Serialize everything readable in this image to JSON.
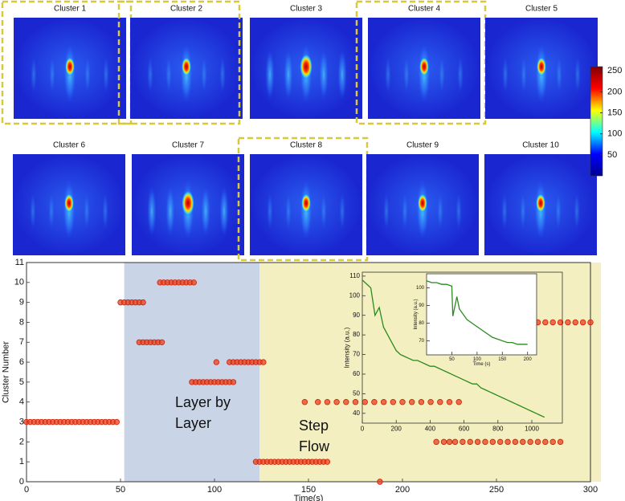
{
  "panels": [
    {
      "title": "Cluster 1",
      "highlighted": true
    },
    {
      "title": "Cluster 2",
      "highlighted": true
    },
    {
      "title": "Cluster 3",
      "highlighted": false
    },
    {
      "title": "Cluster 4",
      "highlighted": true
    },
    {
      "title": "Cluster 5",
      "highlighted": false
    },
    {
      "title": "Cluster 6",
      "highlighted": false
    },
    {
      "title": "Cluster 7",
      "highlighted": false
    },
    {
      "title": "Cluster 8",
      "highlighted": true
    },
    {
      "title": "Cluster 9",
      "highlighted": false
    },
    {
      "title": "Cluster 10",
      "highlighted": false
    }
  ],
  "chart_data": [
    {
      "type": "scatter",
      "xlabel": "Time(s)",
      "ylabel": "Cluster Number",
      "color": "#e8401c",
      "xlim": [
        0,
        300
      ],
      "xticks": [
        0,
        50,
        100,
        150,
        200,
        250,
        300
      ],
      "ylim": [
        0,
        11
      ],
      "yticks": [
        0,
        1,
        2,
        3,
        4,
        5,
        6,
        7,
        8,
        9,
        10,
        11
      ],
      "regions": [
        {
          "lines": [
            "Layer by",
            "Layer"
          ],
          "xlim": [
            52,
            124
          ],
          "color": "#c9d5e6"
        },
        {
          "lines": [
            "Step",
            "Flow"
          ],
          "xlim": [
            124,
            300
          ],
          "color": "#f4efc0"
        }
      ],
      "x": [
        0,
        2,
        4,
        6,
        8,
        10,
        12,
        14,
        16,
        18,
        20,
        22,
        24,
        26,
        28,
        30,
        32,
        34,
        36,
        38,
        40,
        42,
        44,
        46,
        48,
        50,
        52,
        54,
        56,
        58,
        60,
        62,
        60,
        62,
        64,
        66,
        68,
        70,
        72,
        71,
        73,
        75,
        77,
        79,
        81,
        83,
        85,
        87,
        89,
        88,
        90,
        92,
        94,
        96,
        98,
        100,
        102,
        104,
        106,
        108,
        110,
        101,
        108,
        110,
        112,
        114,
        116,
        118,
        120,
        122,
        124,
        126,
        122,
        124,
        126,
        128,
        130,
        132,
        134,
        136,
        138,
        140,
        142,
        144,
        146,
        148,
        150,
        152,
        154,
        156,
        158,
        160,
        148,
        155,
        160,
        165,
        170,
        175,
        180,
        185,
        190,
        195,
        200,
        205,
        210,
        215,
        220,
        225,
        230,
        188,
        218,
        222,
        225,
        228,
        232,
        236,
        240,
        244,
        248,
        252,
        256,
        260,
        264,
        268,
        272,
        276,
        280,
        284,
        268,
        272,
        276,
        280,
        284,
        288,
        292,
        296,
        300
      ],
      "values": [
        3,
        3,
        3,
        3,
        3,
        3,
        3,
        3,
        3,
        3,
        3,
        3,
        3,
        3,
        3,
        3,
        3,
        3,
        3,
        3,
        3,
        3,
        3,
        3,
        3,
        9,
        9,
        9,
        9,
        9,
        9,
        9,
        7,
        7,
        7,
        7,
        7,
        7,
        7,
        10,
        10,
        10,
        10,
        10,
        10,
        10,
        10,
        10,
        10,
        5,
        5,
        5,
        5,
        5,
        5,
        5,
        5,
        5,
        5,
        5,
        5,
        6,
        6,
        6,
        6,
        6,
        6,
        6,
        6,
        6,
        6,
        6,
        1,
        1,
        1,
        1,
        1,
        1,
        1,
        1,
        1,
        1,
        1,
        1,
        1,
        1,
        1,
        1,
        1,
        1,
        1,
        1,
        4,
        4,
        4,
        4,
        4,
        4,
        4,
        4,
        4,
        4,
        4,
        4,
        4,
        4,
        4,
        4,
        4,
        0,
        2,
        2,
        2,
        2,
        2,
        2,
        2,
        2,
        2,
        2,
        2,
        2,
        2,
        2,
        2,
        2,
        2,
        2,
        8,
        8,
        8,
        8,
        8,
        8,
        8,
        8,
        8
      ]
    },
    {
      "type": "line",
      "ylabel": "Intensity (a.u.)",
      "color": "#2a8a1e",
      "xlim": [
        0,
        1180
      ],
      "xticks": [
        0,
        200,
        400,
        600,
        800,
        1000
      ],
      "ylim": [
        35,
        112
      ],
      "yticks": [
        40,
        50,
        60,
        70,
        80,
        90,
        100,
        110
      ],
      "x": [
        0,
        25,
        50,
        75,
        100,
        125,
        150,
        175,
        200,
        225,
        250,
        275,
        300,
        325,
        350,
        375,
        400,
        425,
        450,
        475,
        500,
        525,
        550,
        575,
        600,
        625,
        650,
        675,
        700,
        725,
        750,
        775,
        800,
        825,
        850,
        875,
        900,
        925,
        950,
        975,
        1000,
        1025,
        1050,
        1075
      ],
      "values": [
        108,
        106,
        104,
        90,
        94,
        84,
        80,
        76,
        72,
        70,
        69,
        68,
        67,
        67,
        66,
        65,
        64,
        64,
        63,
        62,
        61,
        60,
        59,
        58,
        57,
        56,
        55,
        55,
        53,
        52,
        51,
        50,
        49,
        48,
        47,
        46,
        45,
        44,
        43,
        42,
        41,
        40,
        39,
        38
      ]
    },
    {
      "type": "line",
      "xlabel": "Time (s)",
      "ylabel": "Intensity (a.u.)",
      "color": "#2a8a1e",
      "xlim": [
        0,
        218
      ],
      "xticks": [
        50,
        100,
        150,
        200
      ],
      "ylim": [
        62,
        108
      ],
      "yticks": [
        70,
        80,
        90,
        100
      ],
      "x": [
        0,
        10,
        20,
        30,
        40,
        50,
        52,
        60,
        65,
        70,
        80,
        90,
        100,
        110,
        120,
        130,
        140,
        150,
        160,
        170,
        180,
        190,
        200
      ],
      "values": [
        104,
        103,
        103,
        102,
        102,
        101,
        84,
        95,
        88,
        86,
        82,
        80,
        78,
        76,
        74,
        72,
        71,
        70,
        69,
        69,
        68,
        68,
        68
      ]
    },
    {
      "type": "colorbar",
      "ylim": [
        0,
        260
      ],
      "yticks": [
        50,
        100,
        150,
        200,
        250
      ],
      "colors": [
        "#00008f",
        "#0000ff",
        "#00ffff",
        "#ffff00",
        "#ff0000",
        "#800000"
      ]
    }
  ]
}
